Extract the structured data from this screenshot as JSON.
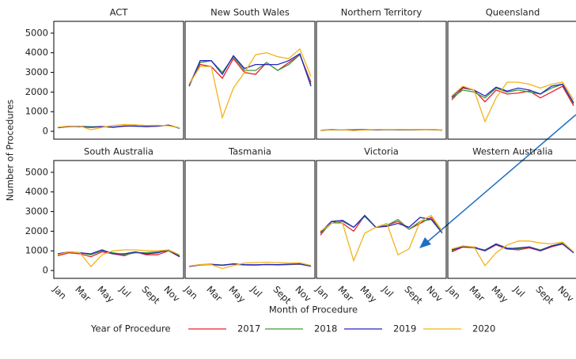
{
  "y_label": "Number of Procedures",
  "x_label": "Month of Procedure",
  "legend_title": "Year of Procedure",
  "chart_data": [
    {
      "type": "line",
      "title": "ACT",
      "categories": [
        "Jan",
        null,
        "Mar",
        null,
        "May",
        null,
        "Jul",
        null,
        "Sept",
        null,
        "Nov",
        null
      ],
      "ylim": [
        -400,
        5600
      ],
      "yticks": [
        0,
        1000,
        2000,
        3000,
        4000,
        5000
      ],
      "series": [
        {
          "name": "2017",
          "color": "#e8202e",
          "values": [
            180,
            240,
            260,
            220,
            250,
            200,
            260,
            280,
            230,
            270,
            300,
            160
          ]
        },
        {
          "name": "2018",
          "color": "#3a9a3a",
          "values": [
            200,
            250,
            250,
            240,
            230,
            210,
            280,
            270,
            240,
            280,
            310,
            170
          ]
        },
        {
          "name": "2019",
          "color": "#2525c0",
          "values": [
            190,
            260,
            240,
            200,
            240,
            220,
            270,
            260,
            250,
            260,
            320,
            150
          ]
        },
        {
          "name": "2020",
          "color": "#f2b31b",
          "values": [
            210,
            270,
            270,
            80,
            200,
            300,
            350,
            330,
            300,
            310,
            280,
            180
          ]
        }
      ]
    },
    {
      "type": "line",
      "title": "New South Wales",
      "categories": [
        "Jan",
        null,
        "Mar",
        null,
        "May",
        null,
        "Jul",
        null,
        "Sept",
        null,
        "Nov",
        null
      ],
      "ylim": [
        -400,
        5600
      ],
      "yticks": [
        0,
        1000,
        2000,
        3000,
        4000,
        5000
      ],
      "series": [
        {
          "name": "2017",
          "color": "#e8202e",
          "values": [
            2400,
            3400,
            3300,
            2700,
            3700,
            3000,
            2900,
            3500,
            3100,
            3500,
            3900,
            2500
          ]
        },
        {
          "name": "2018",
          "color": "#3a9a3a",
          "values": [
            2300,
            3500,
            3600,
            3000,
            3800,
            3100,
            3100,
            3500,
            3100,
            3400,
            3900,
            2400
          ]
        },
        {
          "name": "2019",
          "color": "#2525c0",
          "values": [
            2300,
            3600,
            3600,
            2900,
            3850,
            3200,
            3400,
            3400,
            3400,
            3600,
            3950,
            2300
          ]
        },
        {
          "name": "2020",
          "color": "#f2b31b",
          "values": [
            2400,
            3300,
            3300,
            700,
            2200,
            3000,
            3900,
            4000,
            3800,
            3700,
            4200,
            2800
          ]
        }
      ]
    },
    {
      "type": "line",
      "title": "Northern Territory",
      "categories": [
        "Jan",
        null,
        "Mar",
        null,
        "May",
        null,
        "Jul",
        null,
        "Sept",
        null,
        "Nov",
        null
      ],
      "ylim": [
        -400,
        5600
      ],
      "yticks": [
        0,
        1000,
        2000,
        3000,
        4000,
        5000
      ],
      "series": [
        {
          "name": "2017",
          "color": "#e8202e",
          "values": [
            50,
            80,
            70,
            60,
            80,
            70,
            90,
            80,
            70,
            80,
            90,
            60
          ]
        },
        {
          "name": "2018",
          "color": "#3a9a3a",
          "values": [
            60,
            70,
            80,
            70,
            80,
            80,
            90,
            80,
            80,
            90,
            80,
            60
          ]
        },
        {
          "name": "2019",
          "color": "#2525c0",
          "values": [
            50,
            90,
            70,
            80,
            90,
            70,
            100,
            90,
            80,
            90,
            90,
            70
          ]
        },
        {
          "name": "2020",
          "color": "#f2b31b",
          "values": [
            60,
            80,
            80,
            40,
            70,
            90,
            100,
            100,
            90,
            90,
            90,
            70
          ]
        }
      ]
    },
    {
      "type": "line",
      "title": "Queensland",
      "categories": [
        "Jan",
        null,
        "Mar",
        null,
        "May",
        null,
        "Jul",
        null,
        "Sept",
        null,
        "Nov",
        null
      ],
      "ylim": [
        -400,
        5600
      ],
      "yticks": [
        0,
        1000,
        2000,
        3000,
        4000,
        5000
      ],
      "series": [
        {
          "name": "2017",
          "color": "#e8202e",
          "values": [
            1600,
            2200,
            2100,
            1500,
            2100,
            1900,
            1950,
            2050,
            1700,
            2000,
            2300,
            1300
          ]
        },
        {
          "name": "2018",
          "color": "#3a9a3a",
          "values": [
            1700,
            2100,
            2000,
            1700,
            2200,
            2000,
            2100,
            2000,
            1900,
            2200,
            2400,
            1400
          ]
        },
        {
          "name": "2019",
          "color": "#2525c0",
          "values": [
            1750,
            2250,
            2100,
            1800,
            2250,
            2050,
            2200,
            2100,
            1900,
            2300,
            2400,
            1450
          ]
        },
        {
          "name": "2020",
          "color": "#f2b31b",
          "values": [
            1800,
            2300,
            2100,
            500,
            1700,
            2500,
            2500,
            2400,
            2200,
            2400,
            2500,
            1600
          ]
        }
      ]
    },
    {
      "type": "line",
      "title": "South Australia",
      "categories": [
        "Jan",
        null,
        "Mar",
        null,
        "May",
        null,
        "Jul",
        null,
        "Sept",
        null,
        "Nov",
        null
      ],
      "ylim": [
        -400,
        5600
      ],
      "yticks": [
        0,
        1000,
        2000,
        3000,
        4000,
        5000
      ],
      "series": [
        {
          "name": "2017",
          "color": "#e8202e",
          "values": [
            750,
            900,
            850,
            700,
            950,
            850,
            750,
            950,
            800,
            800,
            1000,
            700
          ]
        },
        {
          "name": "2018",
          "color": "#3a9a3a",
          "values": [
            800,
            950,
            900,
            800,
            1000,
            900,
            800,
            900,
            900,
            950,
            1000,
            750
          ]
        },
        {
          "name": "2019",
          "color": "#2525c0",
          "values": [
            850,
            950,
            900,
            850,
            1050,
            850,
            850,
            950,
            850,
            900,
            1050,
            700
          ]
        },
        {
          "name": "2020",
          "color": "#f2b31b",
          "values": [
            800,
            950,
            900,
            200,
            800,
            1000,
            1050,
            1050,
            1000,
            1000,
            1050,
            800
          ]
        }
      ]
    },
    {
      "type": "line",
      "title": "Tasmania",
      "categories": [
        "Jan",
        null,
        "Mar",
        null,
        "May",
        null,
        "Jul",
        null,
        "Sept",
        null,
        "Nov",
        null
      ],
      "ylim": [
        -400,
        5600
      ],
      "yticks": [
        0,
        1000,
        2000,
        3000,
        4000,
        5000
      ],
      "series": [
        {
          "name": "2017",
          "color": "#e8202e",
          "values": [
            200,
            280,
            300,
            260,
            320,
            280,
            270,
            300,
            280,
            300,
            320,
            220
          ]
        },
        {
          "name": "2018",
          "color": "#3a9a3a",
          "values": [
            220,
            300,
            320,
            280,
            330,
            290,
            280,
            300,
            290,
            310,
            330,
            230
          ]
        },
        {
          "name": "2019",
          "color": "#2525c0",
          "values": [
            210,
            290,
            310,
            270,
            340,
            300,
            290,
            310,
            300,
            320,
            340,
            220
          ]
        },
        {
          "name": "2020",
          "color": "#f2b31b",
          "values": [
            230,
            300,
            300,
            100,
            250,
            380,
            400,
            420,
            400,
            380,
            390,
            260
          ]
        }
      ]
    },
    {
      "type": "line",
      "title": "Victoria",
      "categories": [
        "Jan",
        null,
        "Mar",
        null,
        "May",
        null,
        "Jul",
        null,
        "Sept",
        null,
        "Nov",
        null
      ],
      "ylim": [
        -400,
        5600
      ],
      "yticks": [
        0,
        1000,
        2000,
        3000,
        4000,
        5000
      ],
      "series": [
        {
          "name": "2017",
          "color": "#e8202e",
          "values": [
            1800,
            2500,
            2400,
            2000,
            2800,
            2200,
            2300,
            2500,
            2100,
            2400,
            2700,
            2000
          ]
        },
        {
          "name": "2018",
          "color": "#3a9a3a",
          "values": [
            1900,
            2400,
            2500,
            2200,
            2750,
            2200,
            2300,
            2600,
            2100,
            2500,
            2600,
            2000
          ]
        },
        {
          "name": "2019",
          "color": "#2525c0",
          "values": [
            1950,
            2500,
            2550,
            2200,
            2800,
            2200,
            2250,
            2400,
            2200,
            2700,
            2600,
            1900
          ]
        },
        {
          "name": "2020",
          "color": "#f2b31b",
          "values": [
            2000,
            2400,
            2400,
            500,
            1900,
            2200,
            2400,
            800,
            1100,
            2500,
            2800,
            2000
          ]
        }
      ]
    },
    {
      "type": "line",
      "title": "Western Australia",
      "categories": [
        "Jan",
        null,
        "Mar",
        null,
        "May",
        null,
        "Jul",
        null,
        "Sept",
        null,
        "Nov",
        null
      ],
      "ylim": [
        -400,
        5600
      ],
      "yticks": [
        0,
        1000,
        2000,
        3000,
        4000,
        5000
      ],
      "series": [
        {
          "name": "2017",
          "color": "#e8202e",
          "values": [
            950,
            1200,
            1150,
            1000,
            1300,
            1100,
            1050,
            1150,
            1000,
            1200,
            1350,
            900
          ]
        },
        {
          "name": "2018",
          "color": "#3a9a3a",
          "values": [
            1000,
            1250,
            1150,
            1050,
            1350,
            1150,
            1100,
            1200,
            1050,
            1250,
            1400,
            950
          ]
        },
        {
          "name": "2019",
          "color": "#2525c0",
          "values": [
            1050,
            1200,
            1200,
            1000,
            1350,
            1100,
            1150,
            1200,
            1000,
            1250,
            1350,
            900
          ]
        },
        {
          "name": "2020",
          "color": "#f2b31b",
          "values": [
            1100,
            1250,
            1200,
            250,
            900,
            1300,
            1500,
            1500,
            1400,
            1350,
            1450,
            950
          ]
        }
      ]
    }
  ]
}
